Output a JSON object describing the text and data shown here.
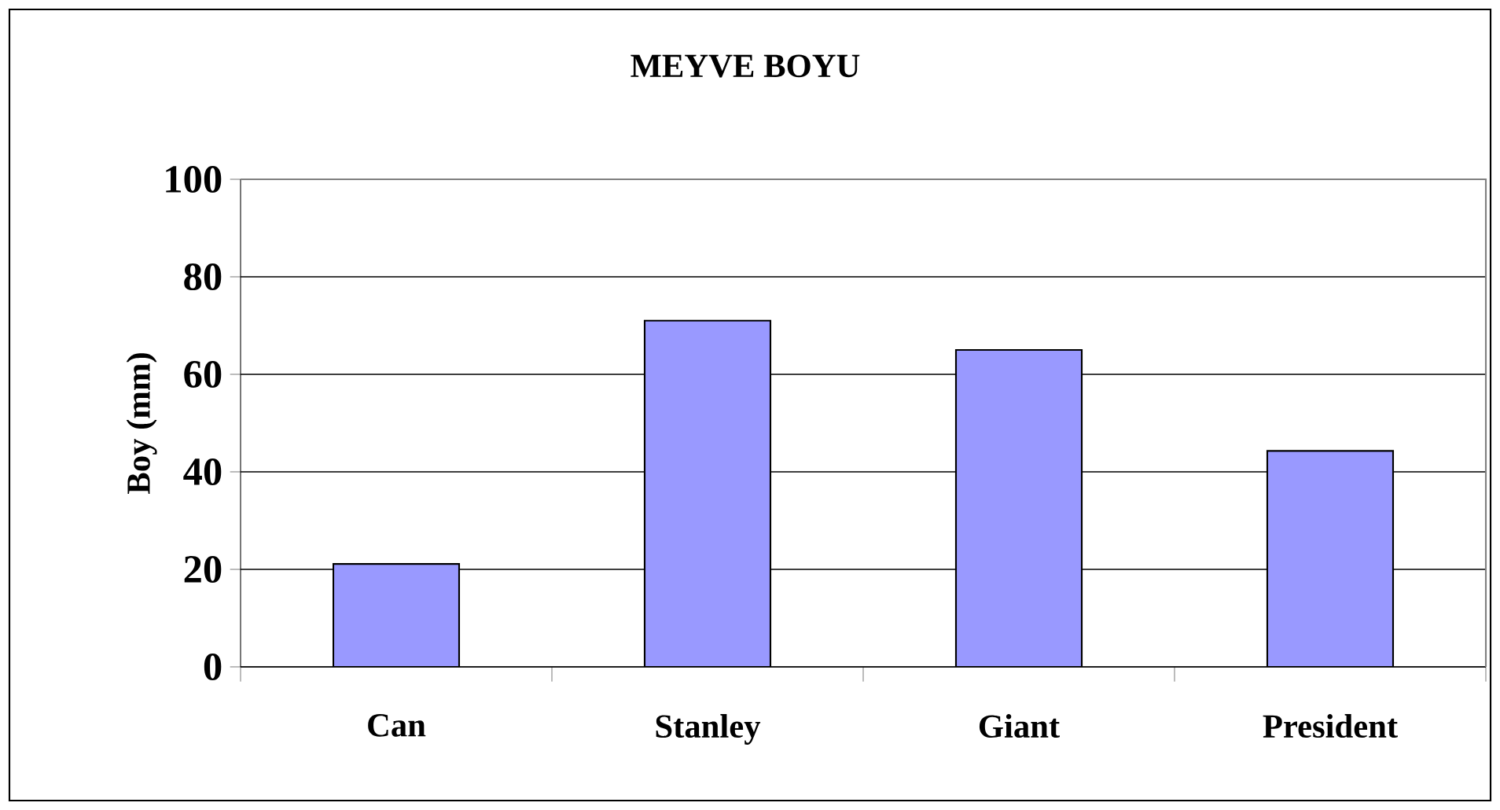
{
  "chart_data": {
    "type": "bar",
    "title": "MEYVE BOYU",
    "ylabel": "Boy (mm)",
    "categories": [
      "Can",
      "Stanley",
      "Giant",
      "President"
    ],
    "values": [
      21.1,
      71.0,
      65.0,
      44.3
    ],
    "color": "#9999ff",
    "ylim": [
      0,
      100
    ],
    "yticks": [
      0,
      20,
      40,
      60,
      80,
      100
    ],
    "grid": "y"
  }
}
